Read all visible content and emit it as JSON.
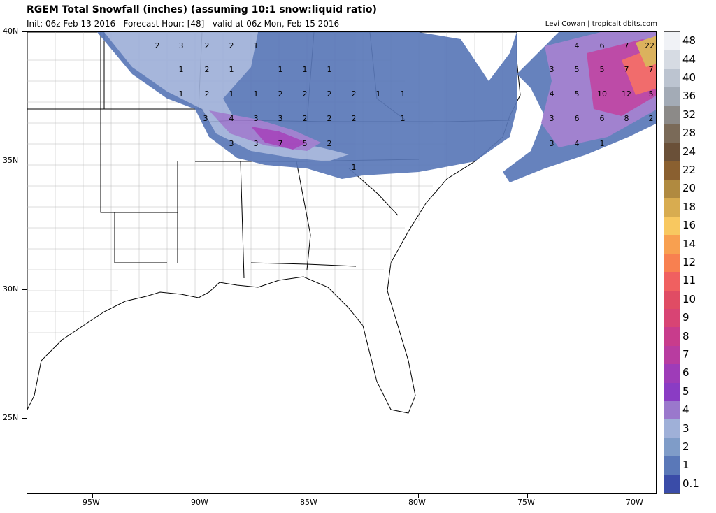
{
  "header": {
    "title": "RGEM Total Snowfall (inches) (assuming 10:1 snow:liquid ratio)",
    "subtitle": "Init: 06z Feb 13 2016   Forecast Hour: [48]   valid at 06z Mon, Feb 15 2016",
    "credit": "Levi Cowan | tropicaltidbits.com"
  },
  "axes": {
    "lat_labels": [
      "40N",
      "35N",
      "30N",
      "25N"
    ],
    "lon_labels": [
      "95W",
      "90W",
      "85W",
      "80W",
      "75W",
      "70W"
    ]
  },
  "colorbar": {
    "labels": [
      "48",
      "44",
      "40",
      "36",
      "32",
      "28",
      "24",
      "22",
      "20",
      "18",
      "16",
      "14",
      "12",
      "11",
      "10",
      "9",
      "8",
      "7",
      "6",
      "5",
      "4",
      "3",
      "2",
      "1",
      "0.1"
    ],
    "colors": [
      "#f0f2f6",
      "#d6dbe3",
      "#bcc4d0",
      "#a3abb6",
      "#8c8a88",
      "#7a6a58",
      "#6a5038",
      "#8a6030",
      "#b08a40",
      "#d8ac50",
      "#f8c860",
      "#f8a050",
      "#f88050",
      "#f06060",
      "#e04c64",
      "#d84474",
      "#c83c8c",
      "#b83ca0",
      "#9e3cb8",
      "#8a3cc4",
      "#9a78cc",
      "#9fb0d8",
      "#7f9cc8",
      "#5a78b8",
      "#3a4ca8"
    ]
  },
  "map_values": [
    {
      "t": "2"
    },
    {
      "t": "3"
    },
    {
      "t": "2"
    },
    {
      "t": "2"
    },
    {
      "t": "1"
    },
    {
      "t": "1"
    },
    {
      "t": "2"
    },
    {
      "t": "1"
    },
    {
      "t": "1"
    },
    {
      "t": "1"
    },
    {
      "t": "1"
    },
    {
      "t": "1"
    },
    {
      "t": "2"
    },
    {
      "t": "1"
    },
    {
      "t": "1"
    },
    {
      "t": "2"
    },
    {
      "t": "2"
    },
    {
      "t": "2"
    },
    {
      "t": "2"
    },
    {
      "t": "1"
    },
    {
      "t": "1"
    },
    {
      "t": "3"
    },
    {
      "t": "4"
    },
    {
      "t": "3"
    },
    {
      "t": "3"
    },
    {
      "t": "2"
    },
    {
      "t": "2"
    },
    {
      "t": "2"
    },
    {
      "t": "1"
    },
    {
      "t": "3"
    },
    {
      "t": "3"
    },
    {
      "t": "7"
    },
    {
      "t": "5"
    },
    {
      "t": "2"
    },
    {
      "t": "1"
    },
    {
      "t": "4"
    },
    {
      "t": "6"
    },
    {
      "t": "7"
    },
    {
      "t": "22"
    },
    {
      "t": "3"
    },
    {
      "t": "5"
    },
    {
      "t": "5"
    },
    {
      "t": "7"
    },
    {
      "t": "7"
    },
    {
      "t": "4"
    },
    {
      "t": "5"
    },
    {
      "t": "10"
    },
    {
      "t": "12"
    },
    {
      "t": "5"
    },
    {
      "t": "3"
    },
    {
      "t": "6"
    },
    {
      "t": "6"
    },
    {
      "t": "8"
    },
    {
      "t": "2"
    },
    {
      "t": "3"
    },
    {
      "t": "4"
    },
    {
      "t": "1"
    }
  ]
}
